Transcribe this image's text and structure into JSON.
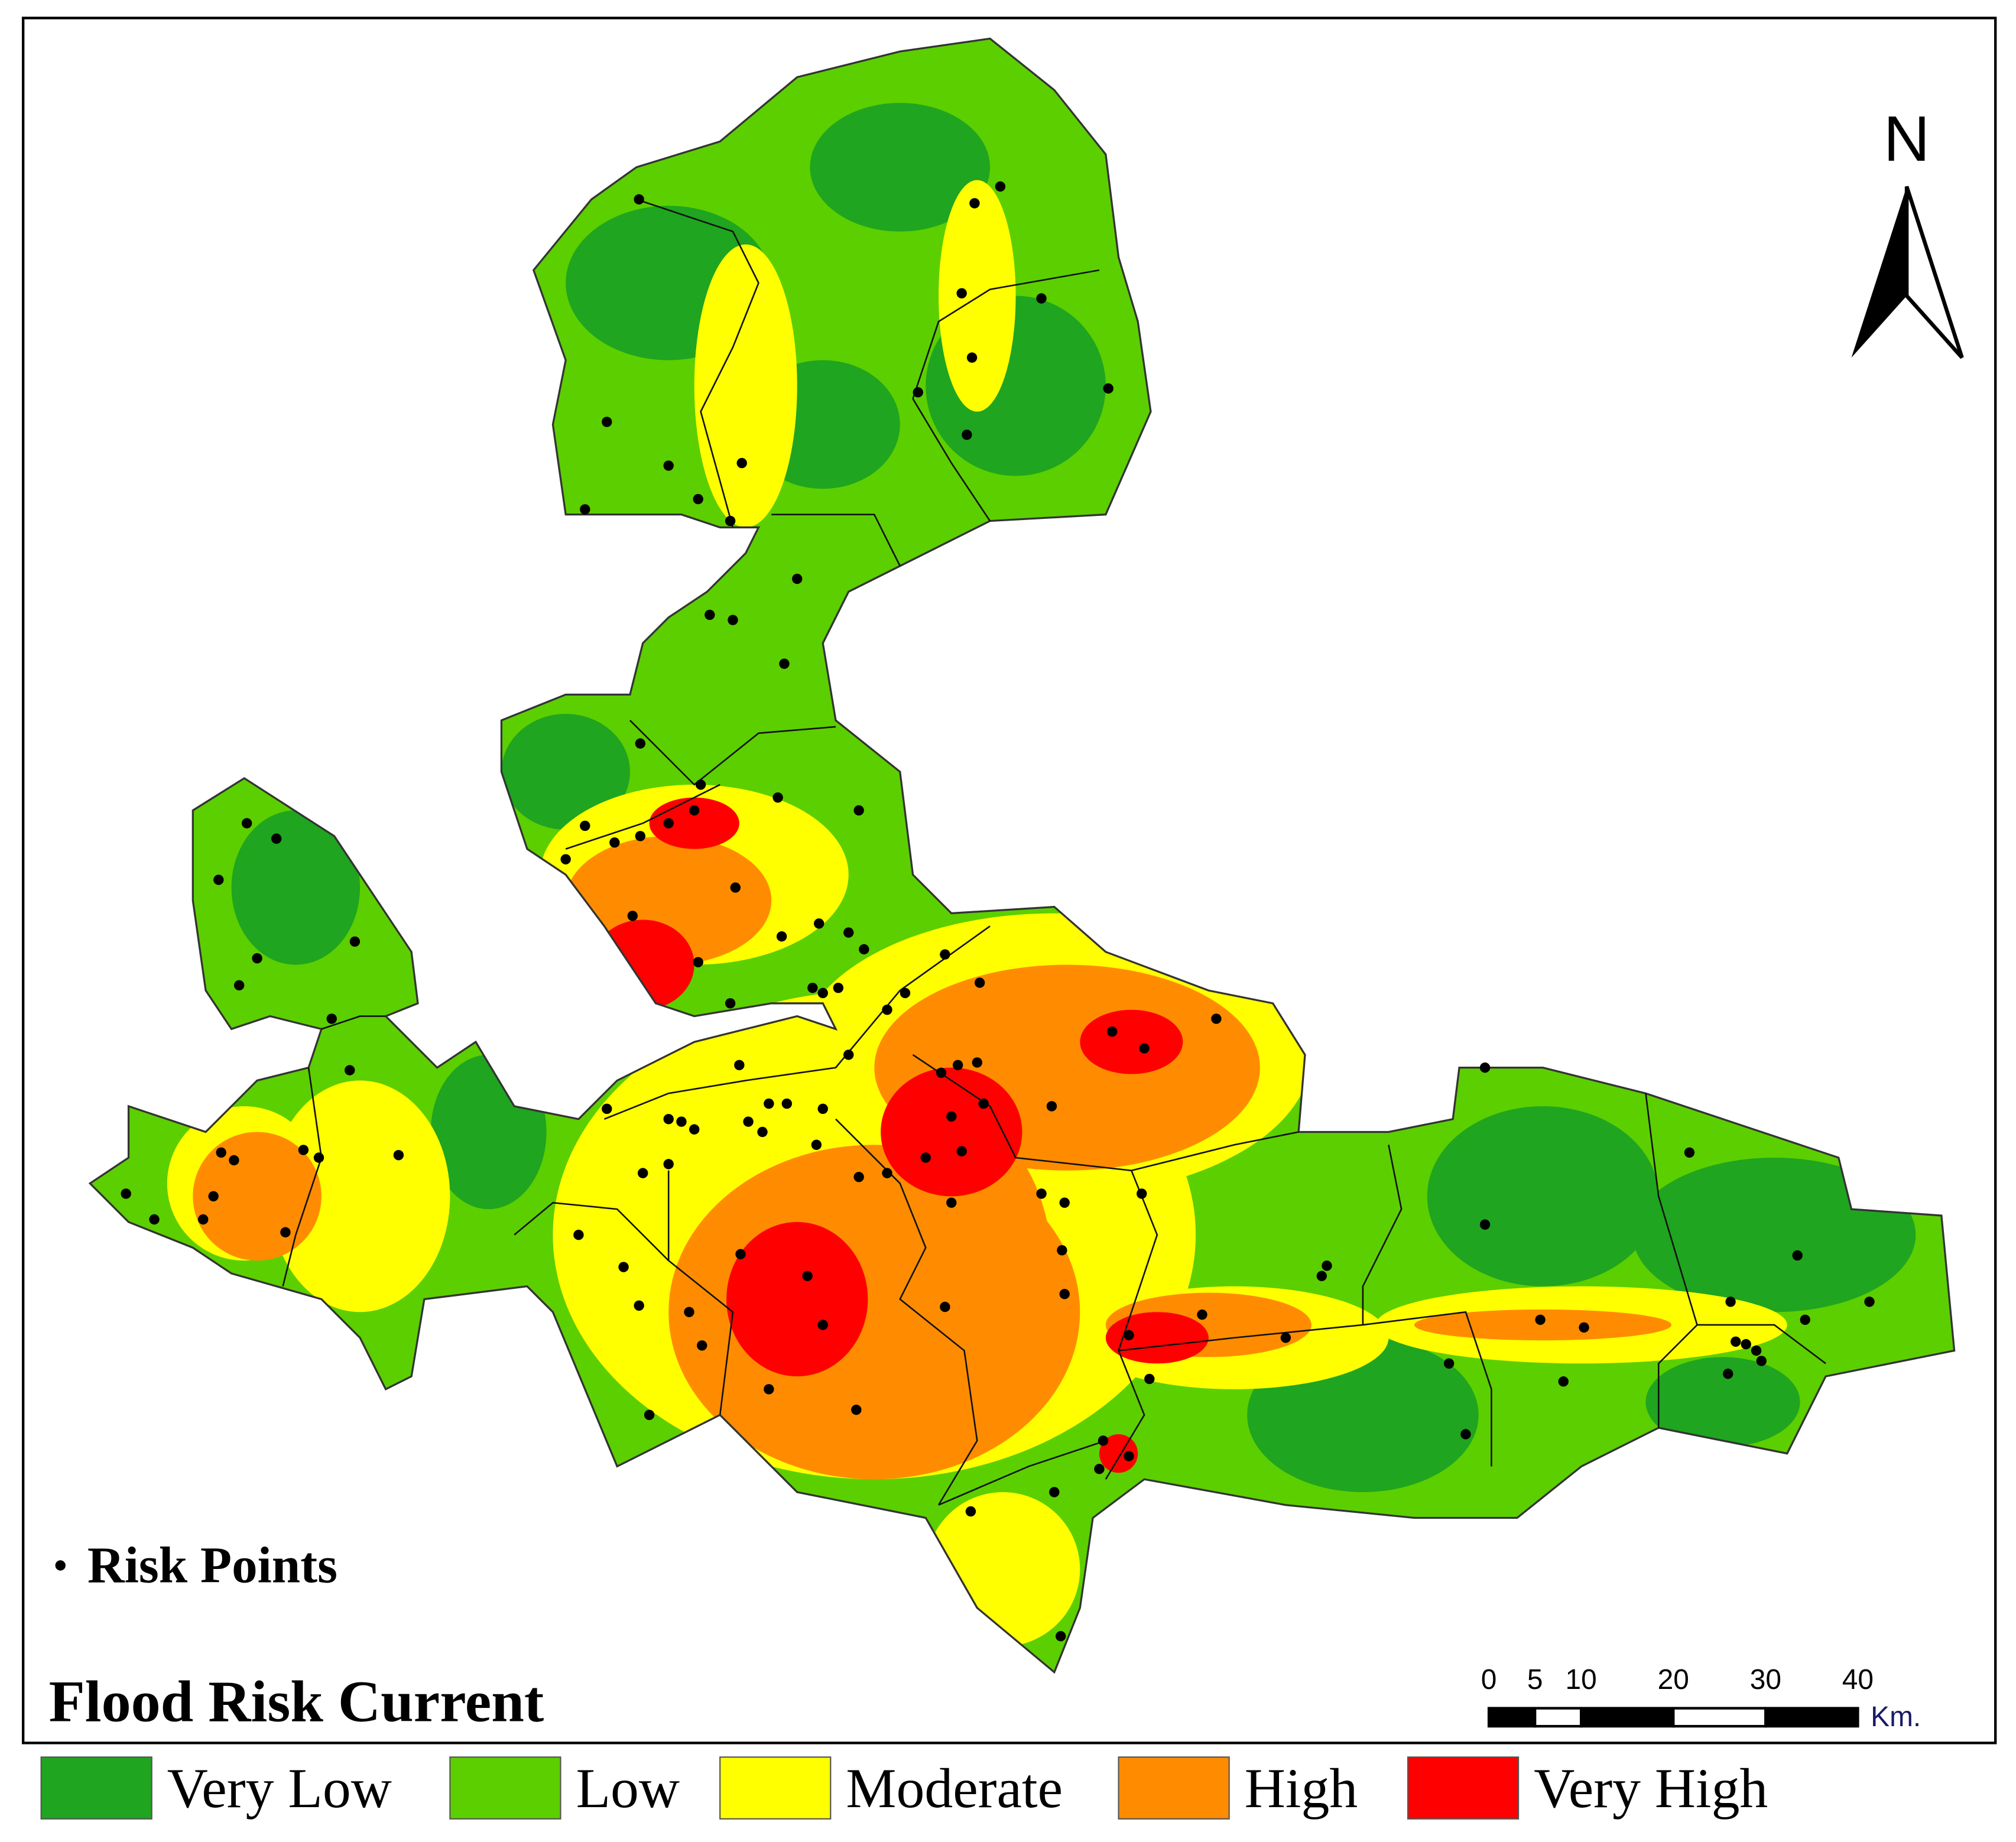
{
  "title": "Flood Risk Current",
  "risk_points_label": "Risk Points",
  "north_label": "N",
  "scale_bar": {
    "ticks": [
      0,
      5,
      10,
      20,
      30,
      40
    ],
    "unit": "Km."
  },
  "legend": [
    {
      "label": "Very Low",
      "color": "#1fa51f"
    },
    {
      "label": "Low",
      "color": "#5ccf00"
    },
    {
      "label": "Moderate",
      "color": "#ffff00"
    },
    {
      "label": "High",
      "color": "#ff8c00"
    },
    {
      "label": "Very High",
      "color": "#ff0000"
    }
  ]
}
